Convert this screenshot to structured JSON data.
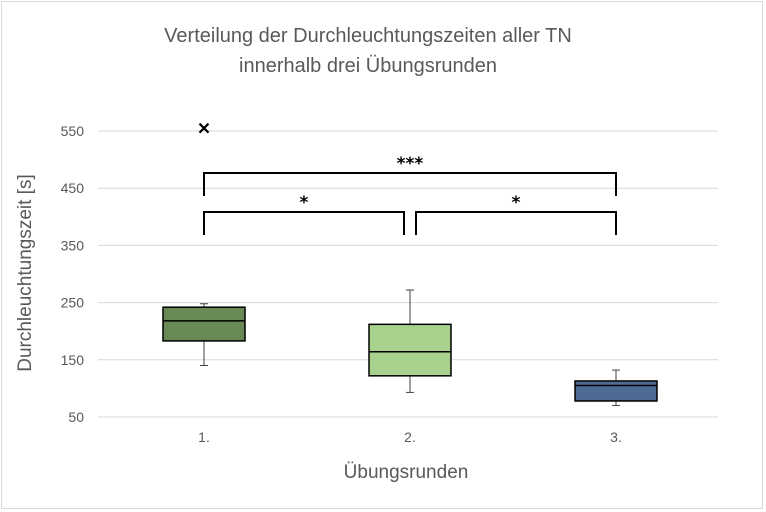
{
  "chart_data": {
    "type": "boxplot",
    "title_lines": [
      "Verteilung der Durchleuchtungszeiten aller TN",
      "innerhalb drei Übungsrunden"
    ],
    "xlabel": "Übungsrunden",
    "ylabel": "Durchleuchtungszeit [s]",
    "ylim": [
      50,
      550
    ],
    "yticks": [
      50,
      150,
      250,
      350,
      450,
      550
    ],
    "ytick_labels": [
      "50",
      "150",
      "250",
      "350",
      "450",
      "550"
    ],
    "grid": true,
    "categories": [
      "1.",
      "2.",
      "3."
    ],
    "boxes": [
      {
        "category": "1.",
        "min": 140,
        "q1": 183,
        "median": 218,
        "q3": 242,
        "max": 248,
        "outliers": [
          555
        ],
        "color": "#6a8a55"
      },
      {
        "category": "2.",
        "min": 93,
        "q1": 122,
        "median": 164,
        "q3": 212,
        "max": 272,
        "outliers": [],
        "color": "#a9d18e"
      },
      {
        "category": "3.",
        "min": 70,
        "q1": 78,
        "median": 105,
        "q3": 113,
        "max": 132,
        "outliers": [],
        "color": "#4e6b93"
      }
    ],
    "significance": [
      {
        "from": "1.",
        "to": "3.",
        "label": "***",
        "level": 1
      },
      {
        "from": "1.",
        "to": "2.",
        "label": "*",
        "level": 0
      },
      {
        "from": "2.",
        "to": "3.",
        "label": "*",
        "level": 0
      }
    ]
  }
}
